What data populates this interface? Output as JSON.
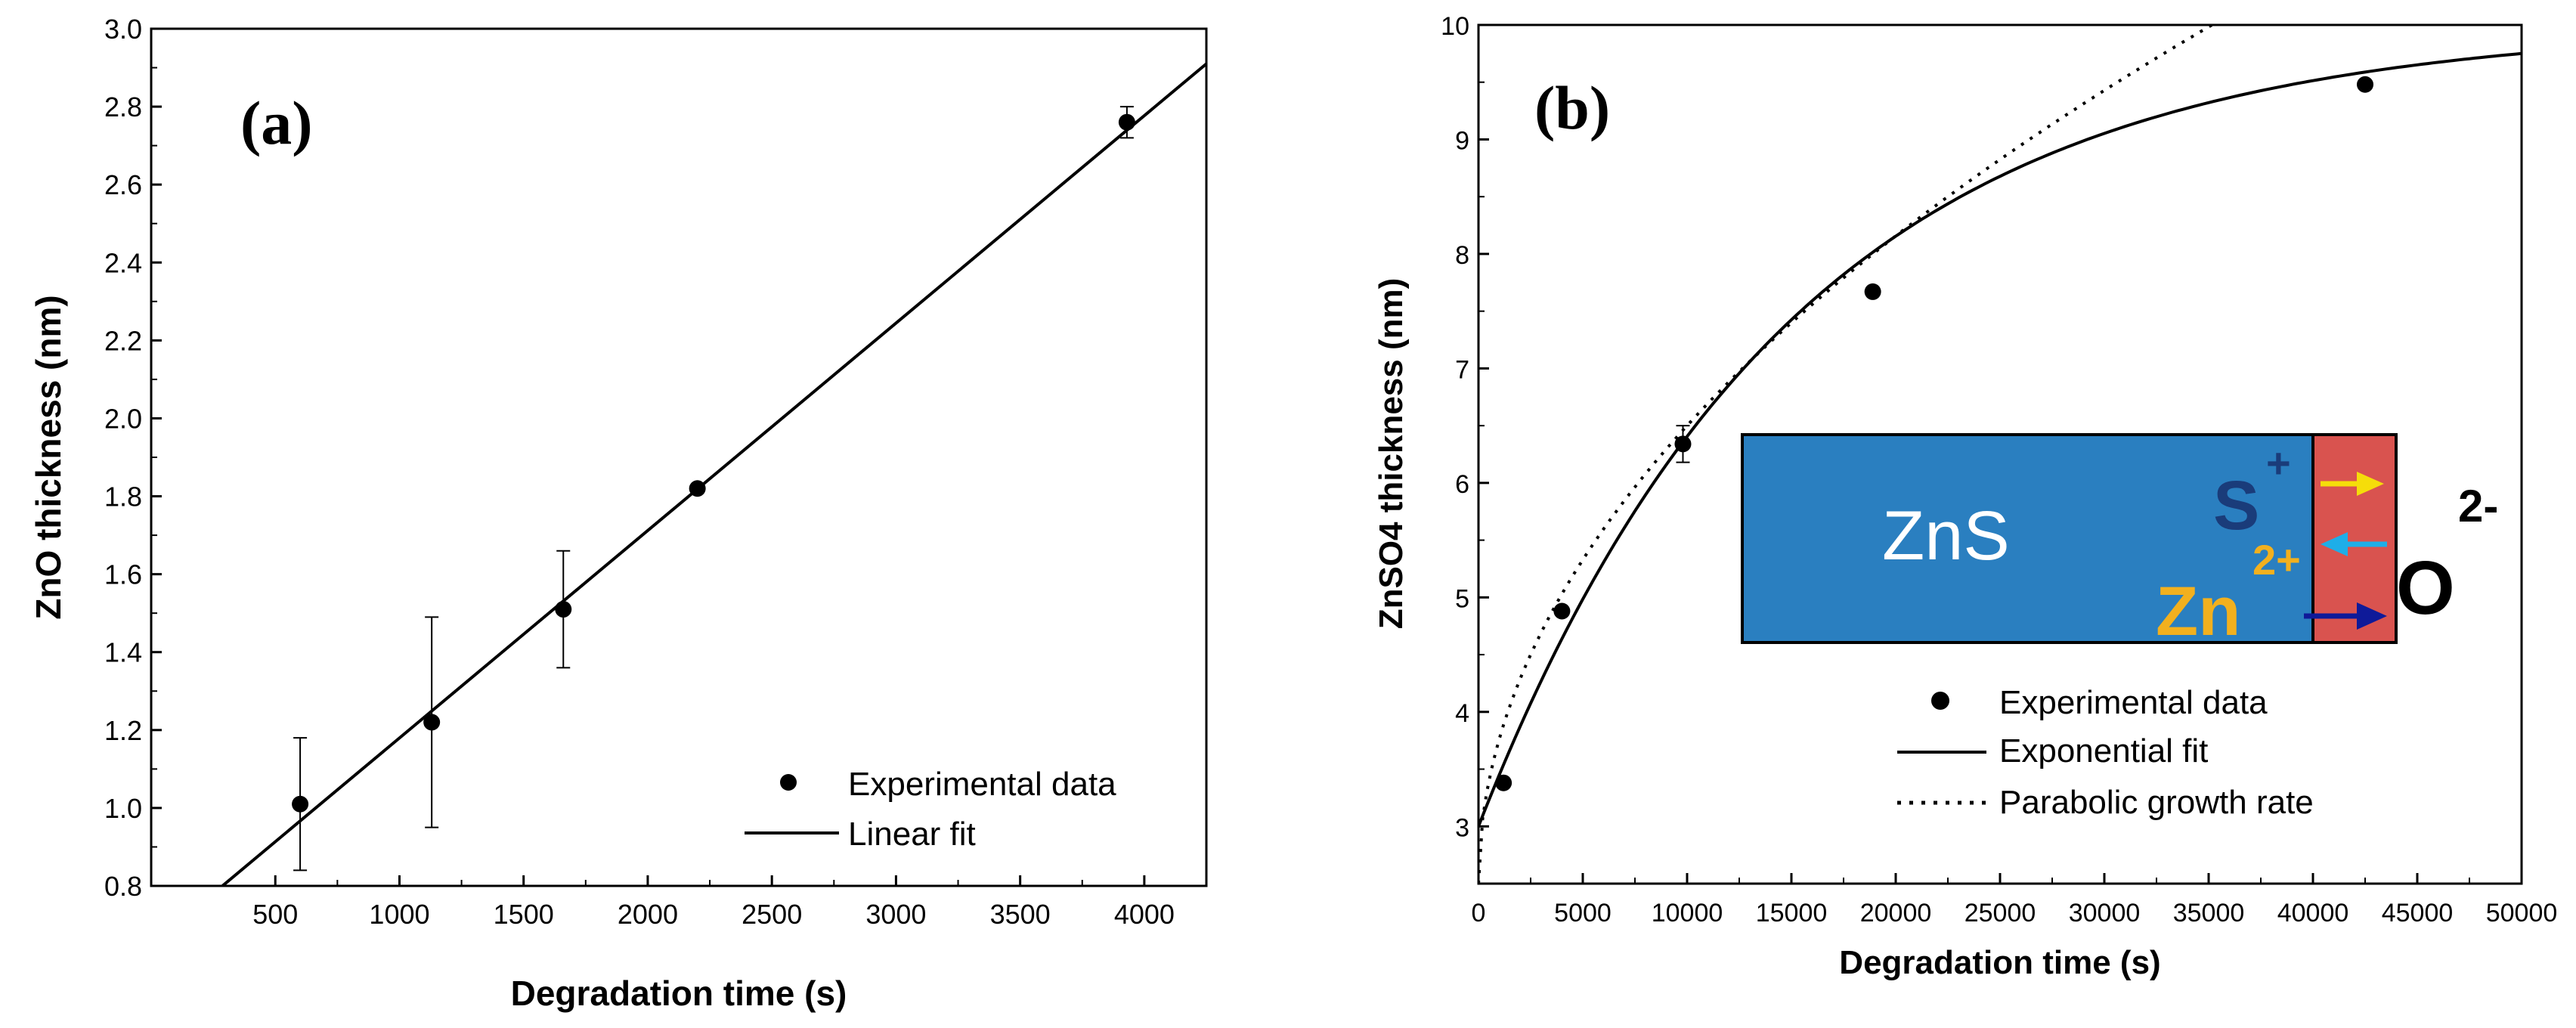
{
  "chart_data": [
    {
      "type": "scatter",
      "panel_label": "(a)",
      "title": "",
      "xlabel": "Degradation time (s)",
      "ylabel": "ZnO thickness (nm)",
      "xlim": [
        0,
        4250
      ],
      "ylim": [
        0.8,
        3.0
      ],
      "grid": false,
      "xticks": [
        500,
        1000,
        1500,
        2000,
        2500,
        3000,
        3500,
        4000
      ],
      "xtick_labels": [
        "500",
        "1000",
        "1500",
        "2000",
        "2500",
        "3000",
        "3500",
        "4000"
      ],
      "yticks": [
        0.8,
        1.0,
        1.2,
        1.4,
        1.6,
        1.8,
        2.0,
        2.2,
        2.4,
        2.6,
        2.8,
        3.0
      ],
      "ytick_labels": [
        "0.8",
        "1.0",
        "1.2",
        "1.4",
        "1.6",
        "1.8",
        "2.0",
        "2.2",
        "2.4",
        "2.6",
        "2.8",
        "3.0"
      ],
      "series": [
        {
          "name": "Experimental data",
          "kind": "points",
          "x": [
            600,
            1130,
            1660,
            2200,
            3930
          ],
          "y": [
            1.01,
            1.22,
            1.51,
            1.82,
            2.76
          ],
          "err": [
            0.17,
            0.27,
            0.15,
            0.0,
            0.04
          ]
        },
        {
          "name": "Linear fit",
          "kind": "line",
          "x": [
            287,
            4250
          ],
          "y": [
            0.8,
            2.91
          ]
        }
      ],
      "legend": {
        "position": "bottom-right",
        "entries": [
          "Experimental data",
          "Linear fit"
        ]
      }
    },
    {
      "type": "scatter",
      "panel_label": "(b)",
      "title": "",
      "xlabel": "Degradation time (s)",
      "ylabel": "ZnSO4 thickness (nm)",
      "xlim": [
        0,
        50000
      ],
      "ylim": [
        2.5,
        10
      ],
      "grid": false,
      "xticks": [
        0,
        5000,
        10000,
        15000,
        20000,
        25000,
        30000,
        35000,
        40000,
        45000,
        50000
      ],
      "xtick_labels": [
        "0",
        "5000",
        "10000",
        "15000",
        "20000",
        "25000",
        "30000",
        "35000",
        "40000",
        "45000",
        "50000"
      ],
      "yticks": [
        3,
        4,
        5,
        6,
        7,
        8,
        9,
        10
      ],
      "ytick_labels": [
        "3",
        "4",
        "5",
        "6",
        "7",
        "8",
        "9",
        "10"
      ],
      "series": [
        {
          "name": "Experimental data",
          "kind": "points",
          "x": [
            1200,
            4000,
            9800,
            18900,
            42500
          ],
          "y": [
            3.38,
            4.88,
            6.34,
            7.67,
            9.48
          ],
          "err": [
            0,
            0,
            0.16,
            0,
            0
          ]
        },
        {
          "name": "Exponential fit",
          "kind": "line",
          "model": "y = 10 - 7 * exp(-x / 15000)"
        },
        {
          "name": "Parabolic growth rate",
          "kind": "dotted",
          "model": "y = 2.5 + 0.04 * sqrt(x)"
        }
      ],
      "legend": {
        "position": "center-right",
        "entries": [
          "Experimental data",
          "Exponential fit",
          "Parabolic growth rate"
        ]
      },
      "inset": {
        "layer_label": "ZnS",
        "ion_s": "S",
        "ion_s_charge": "+",
        "ion_zn": "Zn",
        "ion_zn_charge": "2+",
        "ion_o": "O",
        "ion_o_charge": "2-",
        "colors": {
          "zns_fill": "#2a7fc0",
          "oxide_fill": "#d9534f",
          "s_color": "#1a3c7a",
          "zn_color": "#f2b01e",
          "o_color": "#000000",
          "arrow_yellow": "#f5dd0a",
          "arrow_cyan": "#1eaee8",
          "arrow_navy": "#0f1a99"
        }
      }
    }
  ]
}
